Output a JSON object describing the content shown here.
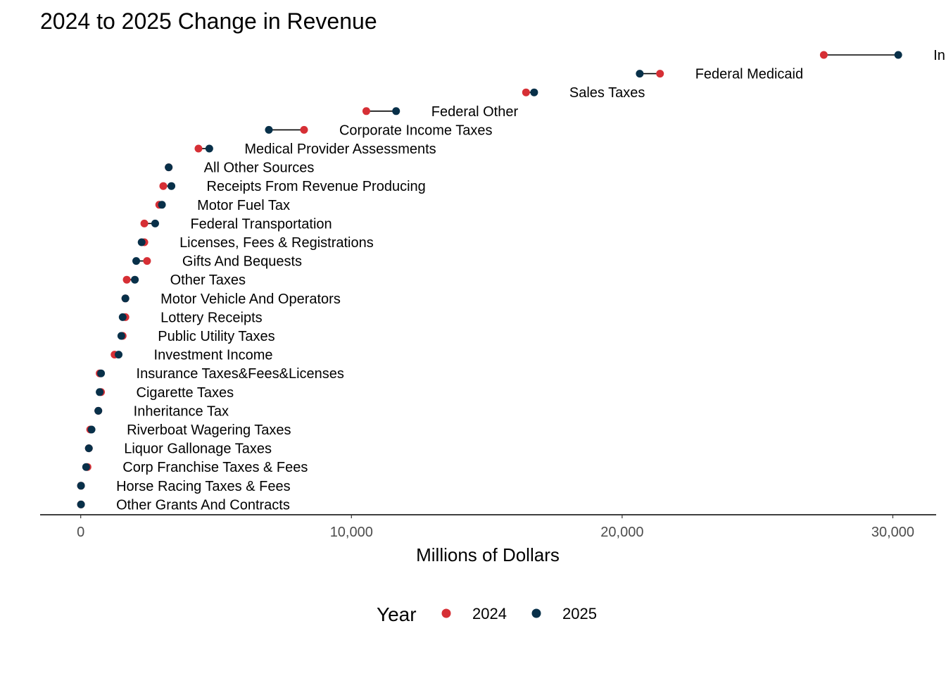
{
  "chart_data": {
    "type": "dumbbell",
    "title": "2024 to 2025 Change in Revenue",
    "xlabel": "Millions of Dollars",
    "ylabel": "",
    "xlim": [
      -1500,
      31600
    ],
    "xticks": [
      0,
      10000,
      20000,
      30000
    ],
    "xtick_labels": [
      "0",
      "10,000",
      "20,000",
      "30,000"
    ],
    "grid": false,
    "legend": {
      "title": "Year",
      "position": "bottom",
      "entries": [
        {
          "label": "2024",
          "color": "#d62f35"
        },
        {
          "label": "2025",
          "color": "#083049"
        }
      ]
    },
    "series": [
      {
        "name": "2024",
        "color": "#d62f35"
      },
      {
        "name": "2025",
        "color": "#083049"
      }
    ],
    "categories": [
      {
        "label": "In",
        "v2024": 27450,
        "v2025": 30200
      },
      {
        "label": "Federal Medicaid",
        "v2024": 21400,
        "v2025": 20650
      },
      {
        "label": "Sales Taxes",
        "v2024": 16450,
        "v2025": 16750
      },
      {
        "label": "Federal Other",
        "v2024": 10550,
        "v2025": 11650
      },
      {
        "label": "Corporate Income Taxes",
        "v2024": 8250,
        "v2025": 6950
      },
      {
        "label": "Medical Provider Assessments",
        "v2024": 4350,
        "v2025": 4750
      },
      {
        "label": "All Other Sources",
        "v2024": 3250,
        "v2025": 3250
      },
      {
        "label": "Receipts From Revenue Producing",
        "v2024": 3050,
        "v2025": 3350
      },
      {
        "label": "Motor Fuel Tax",
        "v2024": 2900,
        "v2025": 3000
      },
      {
        "label": "Federal Transportation",
        "v2024": 2350,
        "v2025": 2750
      },
      {
        "label": "Licenses, Fees & Registrations",
        "v2024": 2350,
        "v2025": 2250
      },
      {
        "label": "Gifts And Bequests",
        "v2024": 2450,
        "v2025": 2050
      },
      {
        "label": "Other Taxes",
        "v2024": 1700,
        "v2025": 2000
      },
      {
        "label": "Motor Vehicle And Operators",
        "v2024": 1650,
        "v2025": 1650
      },
      {
        "label": "Lottery Receipts",
        "v2024": 1650,
        "v2025": 1550
      },
      {
        "label": "Public Utility Taxes",
        "v2024": 1550,
        "v2025": 1500
      },
      {
        "label": "Investment Income",
        "v2024": 1250,
        "v2025": 1400
      },
      {
        "label": "Insurance Taxes&Fees&Licenses",
        "v2024": 700,
        "v2025": 750
      },
      {
        "label": "Cigarette Taxes",
        "v2024": 750,
        "v2025": 700
      },
      {
        "label": "Inheritance Tax",
        "v2024": 650,
        "v2025": 650
      },
      {
        "label": "Riverboat Wagering Taxes",
        "v2024": 350,
        "v2025": 400
      },
      {
        "label": "Liquor Gallonage Taxes",
        "v2024": 300,
        "v2025": 300
      },
      {
        "label": "Corp Franchise Taxes & Fees",
        "v2024": 250,
        "v2025": 200
      },
      {
        "label": "Horse Racing Taxes & Fees",
        "v2024": 10,
        "v2025": 10
      },
      {
        "label": "Other Grants And Contracts",
        "v2024": 10,
        "v2025": 10
      }
    ]
  }
}
